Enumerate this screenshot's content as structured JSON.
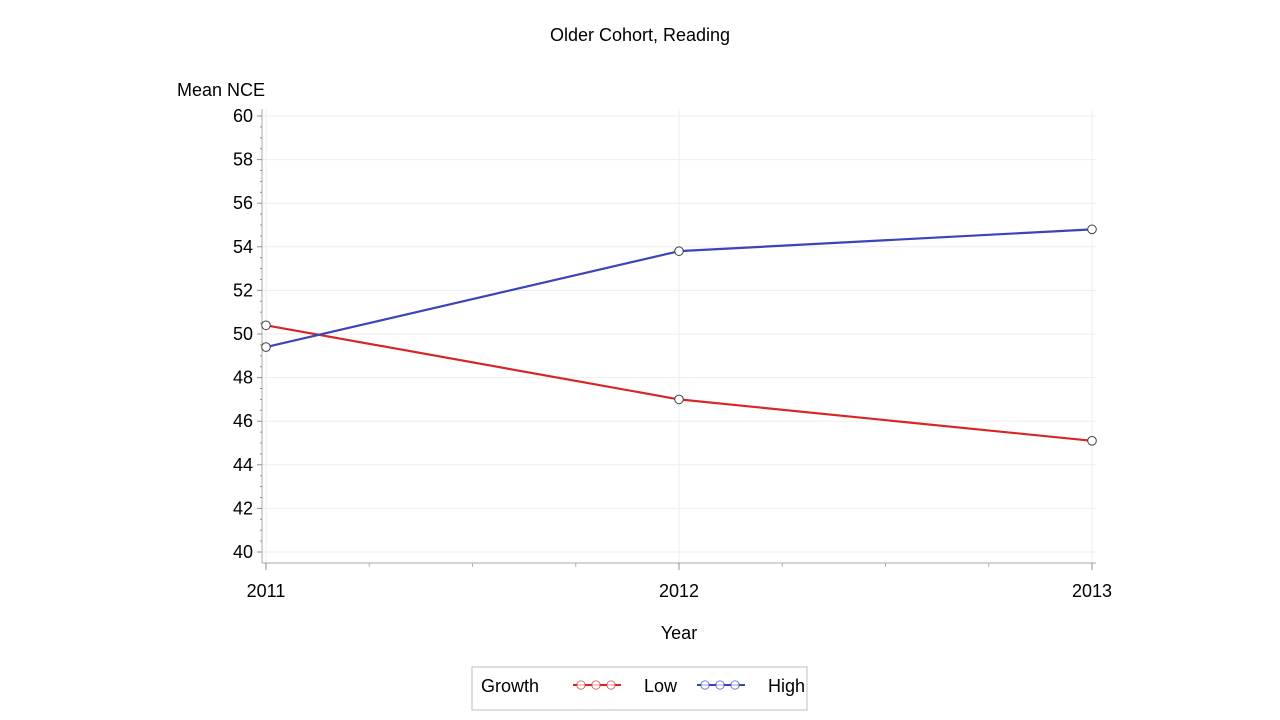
{
  "chart_data": {
    "type": "line",
    "title": "Older Cohort, Reading",
    "xlabel": "Year",
    "ylabel": "Mean NCE",
    "x": [
      "2011",
      "2012",
      "2013"
    ],
    "ylim": [
      40,
      60
    ],
    "yticks": [
      40,
      42,
      44,
      46,
      48,
      50,
      52,
      54,
      56,
      58,
      60
    ],
    "grid": true,
    "legend": {
      "title": "Growth",
      "placement": "bottom-center"
    },
    "series": [
      {
        "name": "Low",
        "values": [
          50.4,
          47.0,
          45.1
        ],
        "color": "#d62728"
      },
      {
        "name": "High",
        "values": [
          49.4,
          53.8,
          54.8
        ],
        "color": "#3b44b8"
      }
    ]
  }
}
